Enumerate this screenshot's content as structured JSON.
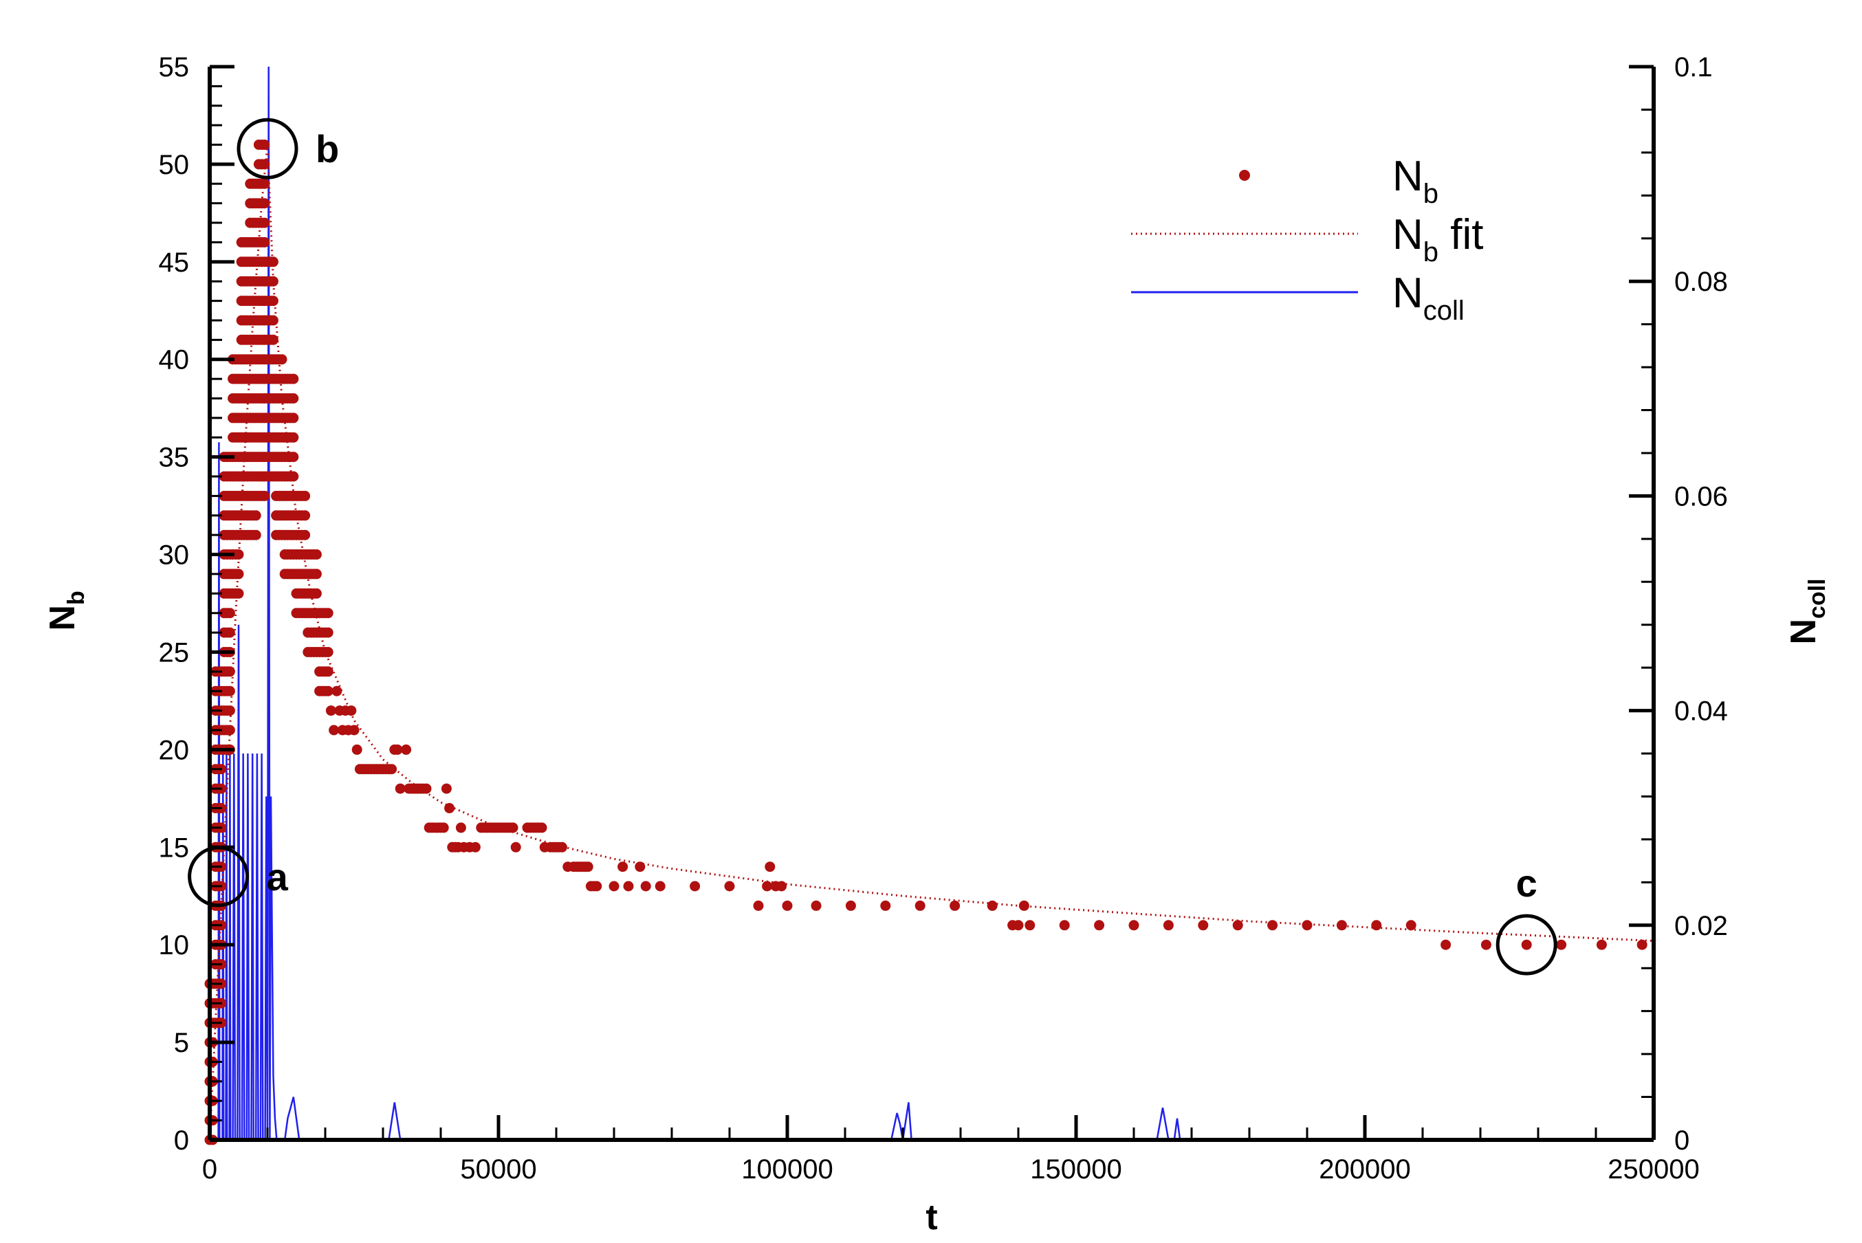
{
  "chart_data": {
    "type": "scatter",
    "xlabel": "t",
    "ylabel_main": "N",
    "ylabel_sub": "b",
    "y2label_main": "N",
    "y2label_sub": "coll",
    "xlim": [
      0,
      250000
    ],
    "ylim": [
      0,
      55
    ],
    "y2lim": [
      0,
      0.1
    ],
    "x_ticks": [
      0,
      50000,
      100000,
      150000,
      200000,
      250000
    ],
    "x_tick_labels": [
      "0",
      "50000",
      "100000",
      "150000",
      "200000",
      "250000"
    ],
    "y_ticks": [
      0,
      5,
      10,
      15,
      20,
      25,
      30,
      35,
      40,
      45,
      50,
      55
    ],
    "y_tick_labels": [
      "0",
      "5",
      "10",
      "15",
      "20",
      "25",
      "30",
      "35",
      "40",
      "45",
      "50",
      "55"
    ],
    "y2_ticks": [
      0,
      0.02,
      0.04,
      0.06,
      0.08,
      0.1
    ],
    "y2_tick_labels": [
      "0",
      "0.02",
      "0.04",
      "0.06",
      "0.08",
      "0.1"
    ],
    "grid": false,
    "legend_placement": "top-right",
    "legend": [
      {
        "main": "N",
        "sub": "b",
        "suffix": "",
        "style": "marker",
        "color": "#b01010"
      },
      {
        "main": "N",
        "sub": "b",
        "suffix": " fit",
        "style": "dotted",
        "color": "#b01010"
      },
      {
        "main": "N",
        "sub": "coll",
        "suffix": "",
        "style": "line",
        "color": "#2020ee"
      }
    ],
    "annotations": [
      {
        "label": "a",
        "x": 1500,
        "y": 13.5
      },
      {
        "label": "b",
        "x": 10000,
        "y": 50.8
      },
      {
        "label": "c",
        "x": 228000,
        "y": 10
      }
    ],
    "series": [
      {
        "name": "Nb",
        "axis": "left",
        "color": "#b01010",
        "early_clusters": [
          {
            "x0": 0,
            "x1": 1000,
            "ymin": 0,
            "ymax": 8
          },
          {
            "x0": 1000,
            "x1": 2500,
            "ymin": 6,
            "ymax": 24
          },
          {
            "x0": 2500,
            "x1": 4000,
            "ymin": 20,
            "ymax": 35
          },
          {
            "x0": 4000,
            "x1": 5500,
            "ymin": 28,
            "ymax": 40
          },
          {
            "x0": 5500,
            "x1": 7000,
            "ymin": 31,
            "ymax": 46
          },
          {
            "x0": 7000,
            "x1": 8500,
            "ymin": 31,
            "ymax": 49
          },
          {
            "x0": 8500,
            "x1": 10000,
            "ymin": 33,
            "ymax": 51
          },
          {
            "x0": 10000,
            "x1": 11500,
            "ymin": 34,
            "ymax": 45
          },
          {
            "x0": 11500,
            "x1": 13000,
            "ymin": 31,
            "ymax": 40
          },
          {
            "x0": 13000,
            "x1": 15000,
            "ymin": 29,
            "ymax": 39
          },
          {
            "x0": 15000,
            "x1": 17000,
            "ymin": 27,
            "ymax": 33
          },
          {
            "x0": 17000,
            "x1": 19000,
            "ymin": 25,
            "ymax": 30
          },
          {
            "x0": 19000,
            "x1": 21000,
            "ymin": 23,
            "ymax": 27
          }
        ],
        "points": [
          [
            21000,
            22
          ],
          [
            21500,
            21
          ],
          [
            22000,
            23
          ],
          [
            22500,
            22
          ],
          [
            23000,
            21
          ],
          [
            23500,
            22
          ],
          [
            24000,
            21
          ],
          [
            24500,
            22
          ],
          [
            25000,
            21
          ],
          [
            25500,
            20
          ],
          [
            26000,
            19
          ],
          [
            26500,
            19
          ],
          [
            27000,
            19
          ],
          [
            27500,
            19
          ],
          [
            28000,
            19
          ],
          [
            28500,
            19
          ],
          [
            29000,
            19
          ],
          [
            29500,
            19
          ],
          [
            30000,
            19
          ],
          [
            30500,
            19
          ],
          [
            31000,
            19
          ],
          [
            31500,
            19
          ],
          [
            32000,
            20
          ],
          [
            32500,
            20
          ],
          [
            33000,
            18
          ],
          [
            34000,
            20
          ],
          [
            34500,
            18
          ],
          [
            35000,
            18
          ],
          [
            35500,
            18
          ],
          [
            36000,
            18
          ],
          [
            36500,
            18
          ],
          [
            37000,
            18
          ],
          [
            37500,
            18
          ],
          [
            38000,
            16
          ],
          [
            38500,
            16
          ],
          [
            39000,
            16
          ],
          [
            39500,
            16
          ],
          [
            40000,
            16
          ],
          [
            40500,
            16
          ],
          [
            41000,
            18
          ],
          [
            41500,
            17
          ],
          [
            42000,
            15
          ],
          [
            42500,
            15
          ],
          [
            43000,
            15
          ],
          [
            43500,
            16
          ],
          [
            44000,
            15
          ],
          [
            45000,
            15
          ],
          [
            46000,
            15
          ],
          [
            47000,
            16
          ],
          [
            47500,
            16
          ],
          [
            48000,
            16
          ],
          [
            48500,
            16
          ],
          [
            49000,
            16
          ],
          [
            49500,
            16
          ],
          [
            50000,
            16
          ],
          [
            50500,
            16
          ],
          [
            51000,
            16
          ],
          [
            51500,
            16
          ],
          [
            52000,
            16
          ],
          [
            52500,
            16
          ],
          [
            53000,
            15
          ],
          [
            55000,
            16
          ],
          [
            55500,
            16
          ],
          [
            56000,
            16
          ],
          [
            56500,
            16
          ],
          [
            57000,
            16
          ],
          [
            57500,
            16
          ],
          [
            58000,
            15
          ],
          [
            59000,
            15
          ],
          [
            59500,
            15
          ],
          [
            60000,
            15
          ],
          [
            60500,
            15
          ],
          [
            61000,
            15
          ],
          [
            62000,
            14
          ],
          [
            63000,
            14
          ],
          [
            63500,
            14
          ],
          [
            64000,
            14
          ],
          [
            64500,
            14
          ],
          [
            65000,
            14
          ],
          [
            65500,
            14
          ],
          [
            66000,
            13
          ],
          [
            66500,
            13
          ],
          [
            67000,
            13
          ],
          [
            70000,
            13
          ],
          [
            71500,
            14
          ],
          [
            72500,
            13
          ],
          [
            74500,
            14
          ],
          [
            75500,
            13
          ],
          [
            78000,
            13
          ],
          [
            84000,
            13
          ],
          [
            90000,
            13
          ],
          [
            95000,
            12
          ],
          [
            96500,
            13
          ],
          [
            97000,
            14
          ],
          [
            98000,
            13
          ],
          [
            99000,
            13
          ],
          [
            100000,
            12
          ],
          [
            105000,
            12
          ],
          [
            111000,
            12
          ],
          [
            117000,
            12
          ],
          [
            123000,
            12
          ],
          [
            129000,
            12
          ],
          [
            135500,
            12
          ],
          [
            139000,
            11
          ],
          [
            140000,
            11
          ],
          [
            141000,
            12
          ],
          [
            142000,
            11
          ],
          [
            148000,
            11
          ],
          [
            154000,
            11
          ],
          [
            160000,
            11
          ],
          [
            166000,
            11
          ],
          [
            172000,
            11
          ],
          [
            178000,
            11
          ],
          [
            184000,
            11
          ],
          [
            190000,
            11
          ],
          [
            196000,
            11
          ],
          [
            202000,
            11
          ],
          [
            208000,
            11
          ],
          [
            214000,
            10
          ],
          [
            221000,
            10
          ],
          [
            228000,
            10
          ],
          [
            234000,
            10
          ],
          [
            241000,
            10
          ],
          [
            248000,
            10
          ]
        ]
      },
      {
        "name": "Nb fit",
        "axis": "left",
        "color": "#b01010",
        "x": [
          0,
          1500,
          3000,
          4500,
          6000,
          7500,
          9000,
          10000,
          11000,
          12500,
          15000,
          17500,
          20000,
          25000,
          30000,
          35000,
          40000,
          50000,
          60000,
          70000,
          80000,
          100000,
          120000,
          140000,
          160000,
          180000,
          200000,
          220000,
          235000,
          250000
        ],
        "y": [
          0,
          9,
          18,
          27,
          35,
          42,
          48,
          51,
          44,
          38,
          32,
          28,
          25,
          21.5,
          19.5,
          18.3,
          17.3,
          16,
          15.1,
          14.4,
          13.9,
          13.1,
          12.5,
          12,
          11.6,
          11.2,
          10.9,
          10.6,
          10.4,
          10.2
        ]
      },
      {
        "name": "Ncoll",
        "axis": "right",
        "color": "#2020ee",
        "x": [
          0,
          1500,
          1600,
          1700,
          2200,
          2300,
          2400,
          2800,
          2900,
          3000,
          3400,
          3500,
          3600,
          4000,
          4200,
          4400,
          4800,
          5000,
          5200,
          5600,
          5800,
          6000,
          6400,
          6600,
          6800,
          7200,
          7400,
          7600,
          8000,
          8200,
          8400,
          8800,
          9000,
          9200,
          9600,
          9800,
          10000,
          10200,
          10400,
          10600,
          11000,
          11300,
          11600,
          12000,
          13000,
          13500,
          14000,
          14500,
          15000,
          15500,
          16000,
          16500,
          17000,
          30000,
          31000,
          32000,
          33000,
          118000,
          119000,
          119500,
          120000,
          121000,
          121500,
          122000,
          164000,
          165000,
          166000,
          167000,
          167500,
          168000,
          169000,
          250000
        ],
        "y": [
          0,
          0,
          0.065,
          0,
          0,
          0.036,
          0,
          0,
          0.036,
          0,
          0,
          0.036,
          0,
          0,
          0.036,
          0,
          0,
          0.048,
          0,
          0,
          0.036,
          0,
          0,
          0.036,
          0,
          0,
          0.036,
          0,
          0,
          0.036,
          0,
          0,
          0.036,
          0,
          0,
          0.032,
          0,
          0.1,
          0,
          0.032,
          0.006,
          0.002,
          0,
          0,
          0,
          0.002,
          0.003,
          0.004,
          0.002,
          0,
          0,
          0,
          0,
          0,
          0,
          0.0035,
          0,
          0,
          0.0025,
          0.0015,
          0,
          0.0035,
          0,
          0,
          0,
          0.003,
          0,
          0,
          0.002,
          0,
          0,
          0
        ]
      }
    ]
  }
}
